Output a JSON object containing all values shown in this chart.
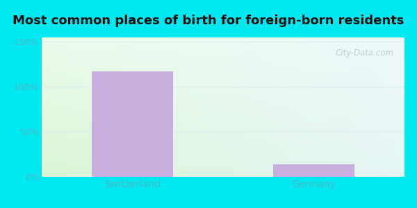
{
  "categories": [
    "Switzerland",
    "Germany"
  ],
  "values": [
    117,
    14
  ],
  "bar_color": "#c9aee0",
  "title": "Most common places of birth for foreign-born residents",
  "title_fontsize": 13,
  "yticks": [
    0,
    50,
    100,
    150
  ],
  "ytick_labels": [
    "0%",
    "50%",
    "100%",
    "150%"
  ],
  "ylim": [
    0,
    155
  ],
  "outer_bg": "#00e8f0",
  "label_color": "#4db8c8",
  "watermark": "City-Data.com",
  "bar_width": 0.45,
  "grid_color": "#ddeeee",
  "bg_color_topleft": "#eafae8",
  "bg_color_topright": "#e8f4f8",
  "bg_color_bottomleft": "#d8f5d0",
  "bg_color_bottomright": "#e8f4f8"
}
